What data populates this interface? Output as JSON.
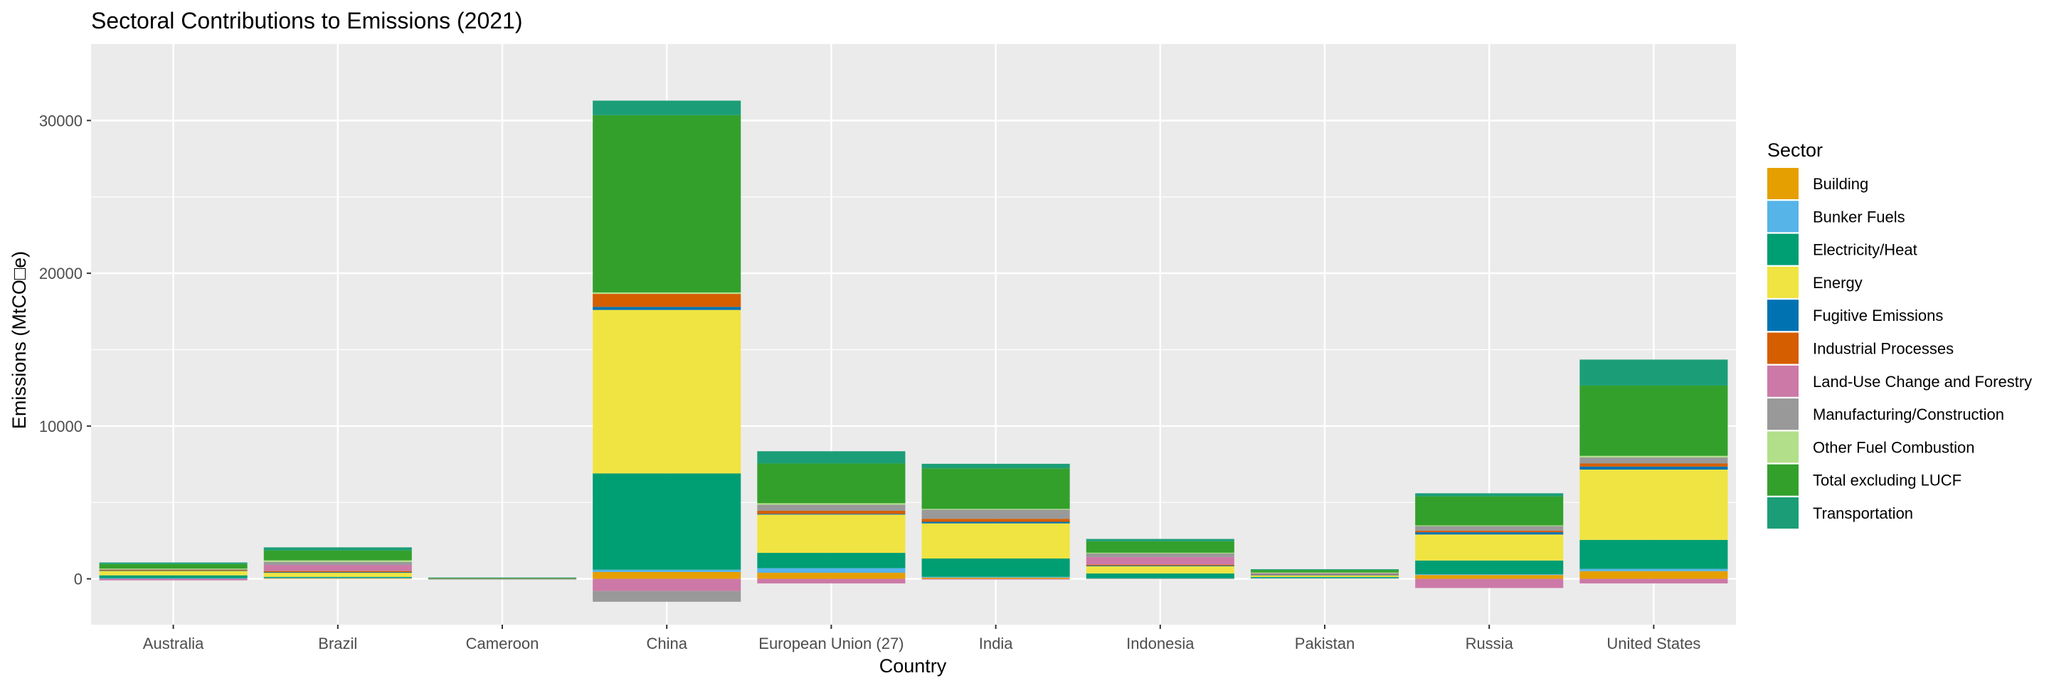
{
  "chart_data": {
    "type": "bar",
    "stacked": true,
    "title": "Sectoral Contributions to Emissions (2021)",
    "xlabel": "Country",
    "ylabel": "Emissions (MtCO□e)",
    "ylim": [
      -3000,
      35000
    ],
    "yticks": [
      0,
      10000,
      20000,
      30000
    ],
    "grid": true,
    "legend_title": "Sector",
    "legend_position": "right",
    "categories": [
      "Australia",
      "Brazil",
      "Cameroon",
      "China",
      "European Union (27)",
      "India",
      "Indonesia",
      "Pakistan",
      "Russia",
      "United States"
    ],
    "series": [
      {
        "name": "Building",
        "color": "#E69F00",
        "values": [
          30,
          40,
          3,
          450,
          400,
          80,
          30,
          50,
          250,
          500
        ]
      },
      {
        "name": "Bunker Fuels",
        "color": "#56B4E9",
        "values": [
          20,
          30,
          1,
          150,
          300,
          50,
          20,
          10,
          50,
          150
        ]
      },
      {
        "name": "Electricity/Heat",
        "color": "#009E73",
        "values": [
          180,
          60,
          2,
          6300,
          1000,
          1200,
          300,
          60,
          900,
          1900
        ]
      },
      {
        "name": "Energy",
        "color": "#F0E442",
        "values": [
          300,
          300,
          8,
          10700,
          2500,
          2300,
          500,
          150,
          1700,
          4600
        ]
      },
      {
        "name": "Fugitive Emissions",
        "color": "#0072B2",
        "values": [
          30,
          10,
          1,
          200,
          50,
          100,
          20,
          10,
          150,
          200
        ]
      },
      {
        "name": "Industrial Processes",
        "color": "#D55E00",
        "values": [
          30,
          70,
          15,
          850,
          200,
          200,
          60,
          40,
          100,
          200
        ]
      },
      {
        "name": "Land-Use Change and Forestry",
        "color": "#CC79A7",
        "values": [
          -100,
          400,
          20,
          -800,
          -300,
          -50,
          500,
          10,
          -600,
          -300
        ]
      },
      {
        "name": "Manufacturing/Construction",
        "color": "#999999",
        "values": [
          60,
          200,
          5,
          -700,
          400,
          600,
          250,
          80,
          300,
          400
        ]
      },
      {
        "name": "Other Fuel Combustion",
        "color": "#B2DF8A",
        "values": [
          20,
          100,
          2,
          100,
          100,
          50,
          30,
          10,
          50,
          100
        ]
      },
      {
        "name": "Total excluding LUCF",
        "color": "#33A02C",
        "values": [
          300,
          650,
          20,
          11600,
          2600,
          2650,
          750,
          150,
          1900,
          4600
        ]
      },
      {
        "name": "Transportation",
        "color": "#1B9E77",
        "values": [
          100,
          200,
          5,
          950,
          800,
          300,
          150,
          60,
          200,
          1700
        ]
      }
    ]
  }
}
